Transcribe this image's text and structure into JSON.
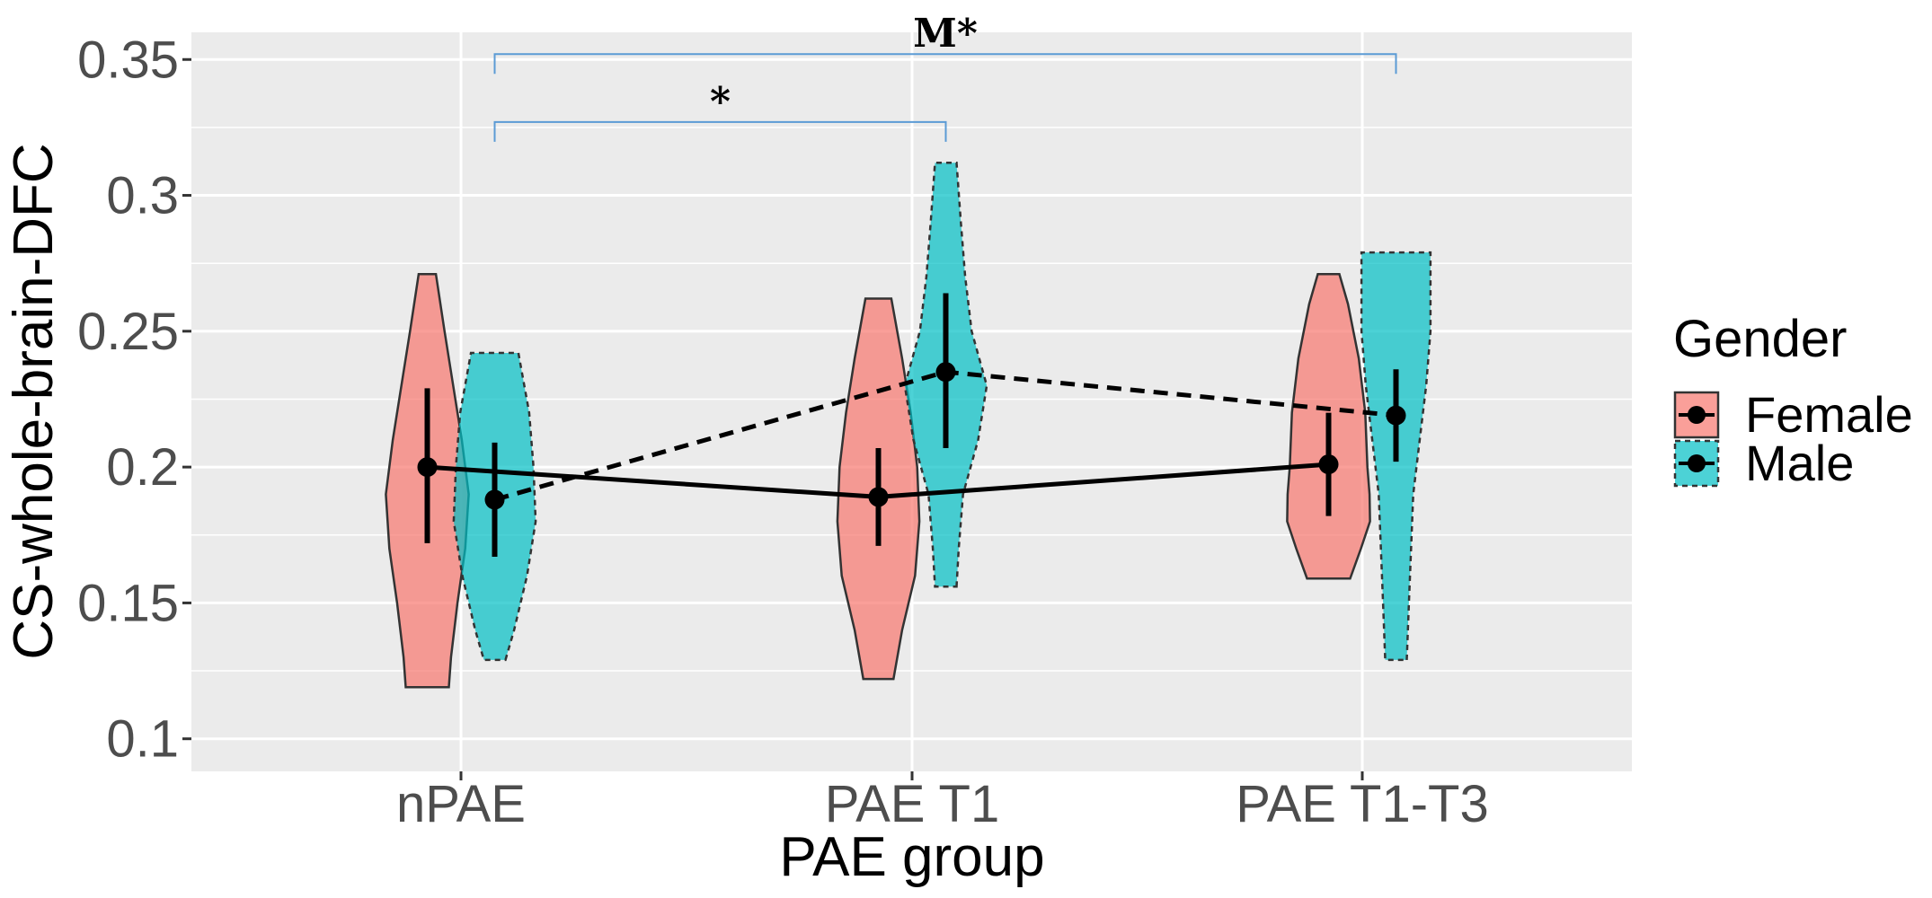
{
  "chart_data": {
    "type": "violin",
    "title": "",
    "xlabel": "PAE group",
    "ylabel": "CS-whole-brain-DFC",
    "categories": [
      "nPAE",
      "PAE T1",
      "PAE T1-T3"
    ],
    "ylim": [
      0.088,
      0.36
    ],
    "yticks": [
      0.1,
      0.15,
      0.2,
      0.25,
      0.3,
      0.35
    ],
    "ytick_labels": [
      "0.1",
      "0.15",
      "0.2",
      "0.25",
      "0.3",
      "0.35"
    ],
    "legend": {
      "title": "Gender",
      "position": "right"
    },
    "series": [
      {
        "name": "Female",
        "color": "#F8766D",
        "line_style": "solid",
        "means": [
          0.2,
          0.189,
          0.201
        ],
        "ci_low": [
          0.172,
          0.171,
          0.182
        ],
        "ci_high": [
          0.229,
          0.207,
          0.22
        ],
        "violin_range": [
          [
            0.119,
            0.271
          ],
          [
            0.122,
            0.262
          ],
          [
            0.159,
            0.271
          ]
        ],
        "violin_widths": [
          [
            [
              0.119,
              0.5
            ],
            [
              0.13,
              0.55
            ],
            [
              0.15,
              0.7
            ],
            [
              0.17,
              0.88
            ],
            [
              0.19,
              0.96
            ],
            [
              0.21,
              0.8
            ],
            [
              0.23,
              0.6
            ],
            [
              0.25,
              0.4
            ],
            [
              0.271,
              0.2
            ]
          ],
          [
            [
              0.122,
              0.35
            ],
            [
              0.14,
              0.55
            ],
            [
              0.16,
              0.85
            ],
            [
              0.18,
              0.95
            ],
            [
              0.2,
              0.9
            ],
            [
              0.22,
              0.75
            ],
            [
              0.24,
              0.55
            ],
            [
              0.262,
              0.3
            ]
          ],
          [
            [
              0.159,
              0.5
            ],
            [
              0.17,
              0.75
            ],
            [
              0.18,
              0.96
            ],
            [
              0.19,
              0.95
            ],
            [
              0.2,
              0.9
            ],
            [
              0.22,
              0.85
            ],
            [
              0.24,
              0.7
            ],
            [
              0.26,
              0.45
            ],
            [
              0.271,
              0.25
            ]
          ]
        ]
      },
      {
        "name": "Male",
        "color": "#00BFC4",
        "line_style": "dashed",
        "means": [
          0.188,
          0.235,
          0.219
        ],
        "ci_low": [
          0.167,
          0.207,
          0.202
        ],
        "ci_high": [
          0.209,
          0.264,
          0.236
        ],
        "violin_range": [
          [
            0.129,
            0.242
          ],
          [
            0.156,
            0.312
          ],
          [
            0.129,
            0.279
          ]
        ],
        "violin_widths": [
          [
            [
              0.129,
              0.25
            ],
            [
              0.14,
              0.45
            ],
            [
              0.16,
              0.75
            ],
            [
              0.18,
              0.95
            ],
            [
              0.2,
              0.9
            ],
            [
              0.22,
              0.8
            ],
            [
              0.242,
              0.55
            ]
          ],
          [
            [
              0.156,
              0.25
            ],
            [
              0.17,
              0.3
            ],
            [
              0.19,
              0.4
            ],
            [
              0.21,
              0.75
            ],
            [
              0.23,
              0.95
            ],
            [
              0.25,
              0.6
            ],
            [
              0.27,
              0.45
            ],
            [
              0.29,
              0.35
            ],
            [
              0.312,
              0.25
            ]
          ],
          [
            [
              0.129,
              0.25
            ],
            [
              0.15,
              0.3
            ],
            [
              0.17,
              0.35
            ],
            [
              0.19,
              0.4
            ],
            [
              0.21,
              0.55
            ],
            [
              0.23,
              0.7
            ],
            [
              0.25,
              0.8
            ],
            [
              0.265,
              0.8
            ],
            [
              0.279,
              0.8
            ]
          ]
        ]
      }
    ],
    "annotations": [
      {
        "label": "*",
        "from_category": 0,
        "to_category": 1,
        "y": 0.327
      },
      {
        "label": "M*",
        "from_category": 0,
        "to_category": 2,
        "y": 0.352
      }
    ]
  }
}
